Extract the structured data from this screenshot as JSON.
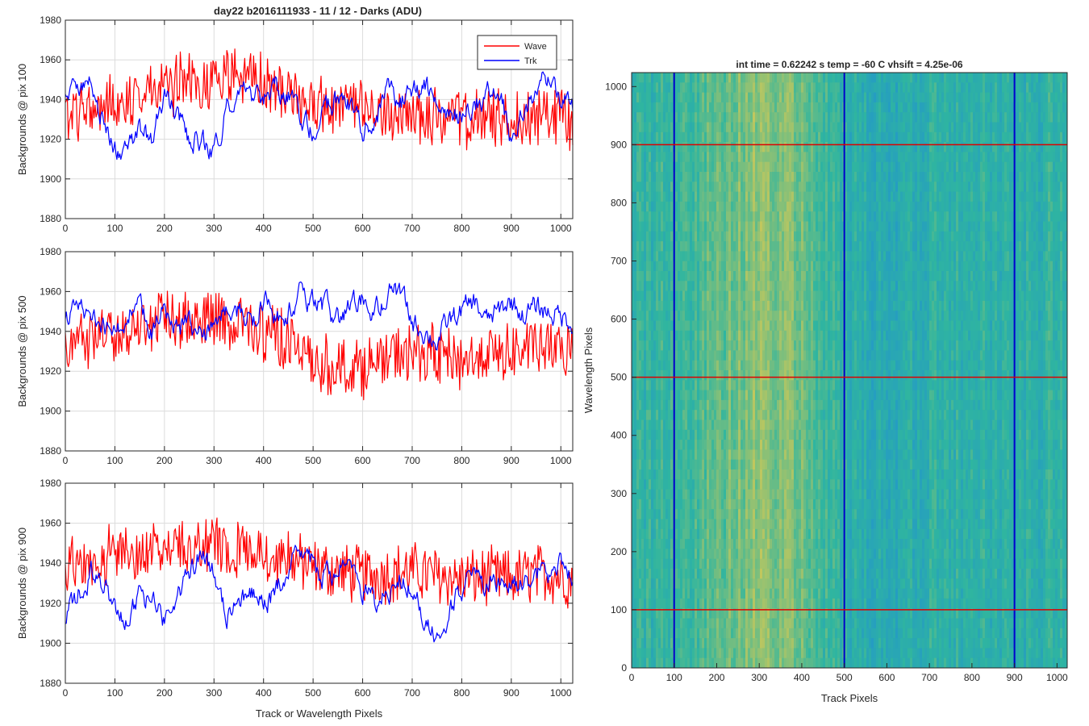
{
  "figure": {
    "title": "day22 b2016111933 - 11 / 12 - Darks (ADU)",
    "image_title": "int time = 0.62242 s    temp = -60 C    vhsift = 4.25e-06"
  },
  "colors": {
    "wave": "#ff0000",
    "trk": "#0000ff",
    "grid": "#dcdcdc",
    "axis": "#262626",
    "image_low": "#1f8ed6",
    "image_mid": "#2fb5a0",
    "image_high": "#c8c85a"
  },
  "chart_data": [
    {
      "type": "line",
      "ylabel": "Backgrounds @ pix 100",
      "xlabel": "",
      "xlim": [
        0,
        1024
      ],
      "ylim": [
        1880,
        1980
      ],
      "xticks": [
        0,
        100,
        200,
        300,
        400,
        500,
        600,
        700,
        800,
        900,
        1000
      ],
      "yticks": [
        1880,
        1900,
        1920,
        1940,
        1960,
        1980
      ],
      "grid": true,
      "legend": "top-right",
      "series": [
        {
          "name": "Wave",
          "color": "#ff0000",
          "x": [
            0,
            50,
            100,
            150,
            200,
            250,
            300,
            350,
            400,
            450,
            500,
            550,
            600,
            650,
            700,
            750,
            800,
            850,
            900,
            950,
            1000,
            1024
          ],
          "y": [
            1931,
            1936,
            1938,
            1944,
            1946,
            1948,
            1950,
            1952,
            1948,
            1942,
            1938,
            1936,
            1934,
            1932,
            1933,
            1931,
            1930,
            1930,
            1929,
            1932,
            1933,
            1930
          ]
        },
        {
          "name": "Trk",
          "color": "#0000ff",
          "x": [
            0,
            25,
            50,
            75,
            100,
            125,
            150,
            175,
            200,
            225,
            250,
            275,
            300,
            325,
            350,
            375,
            400,
            425,
            450,
            475,
            500,
            525,
            550,
            575,
            600,
            625,
            650,
            675,
            700,
            725,
            750,
            775,
            800,
            825,
            850,
            875,
            900,
            925,
            950,
            975,
            1000,
            1024
          ],
          "y": [
            1940,
            1950,
            1948,
            1930,
            1915,
            1912,
            1925,
            1918,
            1942,
            1932,
            1920,
            1918,
            1915,
            1935,
            1945,
            1942,
            1938,
            1945,
            1942,
            1930,
            1924,
            1935,
            1940,
            1938,
            1925,
            1930,
            1945,
            1938,
            1942,
            1948,
            1935,
            1930,
            1932,
            1938,
            1942,
            1945,
            1920,
            1935,
            1945,
            1952,
            1942,
            1935
          ]
        }
      ]
    },
    {
      "type": "line",
      "ylabel": "Backgrounds @ pix 500",
      "xlabel": "",
      "xlim": [
        0,
        1024
      ],
      "ylim": [
        1880,
        1980
      ],
      "xticks": [
        0,
        100,
        200,
        300,
        400,
        500,
        600,
        700,
        800,
        900,
        1000
      ],
      "yticks": [
        1880,
        1900,
        1920,
        1940,
        1960,
        1980
      ],
      "grid": true,
      "series": [
        {
          "name": "Wave",
          "color": "#ff0000",
          "x": [
            0,
            50,
            100,
            150,
            200,
            250,
            300,
            350,
            400,
            450,
            500,
            550,
            600,
            650,
            700,
            750,
            800,
            850,
            900,
            950,
            1000,
            1024
          ],
          "y": [
            1932,
            1937,
            1940,
            1942,
            1945,
            1946,
            1948,
            1945,
            1940,
            1935,
            1925,
            1922,
            1922,
            1926,
            1930,
            1928,
            1925,
            1928,
            1930,
            1932,
            1930,
            1928
          ]
        },
        {
          "name": "Trk",
          "color": "#0000ff",
          "x": [
            0,
            25,
            50,
            75,
            100,
            125,
            150,
            175,
            200,
            225,
            250,
            275,
            300,
            325,
            350,
            375,
            400,
            425,
            450,
            475,
            500,
            525,
            550,
            575,
            600,
            625,
            650,
            675,
            700,
            725,
            750,
            775,
            800,
            825,
            850,
            875,
            900,
            925,
            950,
            975,
            1000,
            1024
          ],
          "y": [
            1945,
            1952,
            1948,
            1945,
            1938,
            1950,
            1952,
            1938,
            1950,
            1940,
            1945,
            1935,
            1948,
            1952,
            1950,
            1945,
            1955,
            1948,
            1950,
            1958,
            1955,
            1952,
            1945,
            1952,
            1955,
            1950,
            1958,
            1960,
            1945,
            1940,
            1935,
            1945,
            1950,
            1955,
            1945,
            1950,
            1955,
            1948,
            1952,
            1950,
            1948,
            1945
          ]
        }
      ]
    },
    {
      "type": "line",
      "ylabel": "Backgrounds @ pix 900",
      "xlabel": "Track or Wavelength Pixels",
      "xlim": [
        0,
        1024
      ],
      "ylim": [
        1880,
        1980
      ],
      "xticks": [
        0,
        100,
        200,
        300,
        400,
        500,
        600,
        700,
        800,
        900,
        1000
      ],
      "yticks": [
        1880,
        1900,
        1920,
        1940,
        1960,
        1980
      ],
      "grid": true,
      "series": [
        {
          "name": "Wave",
          "color": "#ff0000",
          "x": [
            0,
            50,
            100,
            150,
            200,
            250,
            300,
            350,
            400,
            450,
            500,
            550,
            600,
            650,
            700,
            750,
            800,
            850,
            900,
            950,
            1000,
            1024
          ],
          "y": [
            1940,
            1942,
            1944,
            1946,
            1947,
            1948,
            1948,
            1947,
            1945,
            1942,
            1938,
            1936,
            1934,
            1935,
            1936,
            1934,
            1932,
            1933,
            1932,
            1935,
            1934,
            1930
          ]
        },
        {
          "name": "Trk",
          "color": "#0000ff",
          "x": [
            0,
            25,
            50,
            75,
            100,
            125,
            150,
            175,
            200,
            225,
            250,
            275,
            300,
            325,
            350,
            375,
            400,
            425,
            450,
            475,
            500,
            525,
            550,
            575,
            600,
            625,
            650,
            675,
            700,
            725,
            750,
            775,
            800,
            825,
            850,
            875,
            900,
            925,
            950,
            975,
            1000,
            1024
          ],
          "y": [
            1910,
            1925,
            1935,
            1932,
            1915,
            1908,
            1925,
            1920,
            1912,
            1922,
            1935,
            1948,
            1935,
            1915,
            1918,
            1925,
            1918,
            1925,
            1938,
            1945,
            1940,
            1932,
            1938,
            1935,
            1928,
            1920,
            1925,
            1932,
            1930,
            1912,
            1905,
            1915,
            1928,
            1935,
            1925,
            1932,
            1930,
            1928,
            1935,
            1932,
            1938,
            1935
          ]
        }
      ]
    },
    {
      "type": "heatmap",
      "title": "int time = 0.62242 s    temp = -60 C    vhsift = 4.25e-06",
      "xlabel": "Track Pixels",
      "ylabel": "Wavelength Pixels",
      "xlim": [
        0,
        1024
      ],
      "ylim": [
        0,
        1024
      ],
      "xticks": [
        0,
        100,
        200,
        300,
        400,
        500,
        600,
        700,
        800,
        900,
        1000
      ],
      "yticks": [
        0,
        100,
        200,
        300,
        400,
        500,
        600,
        700,
        800,
        900,
        1000
      ],
      "grid": false,
      "column_profile": {
        "x": [
          0,
          50,
          100,
          150,
          200,
          250,
          300,
          350,
          400,
          450,
          500,
          550,
          600,
          650,
          700,
          750,
          800,
          850,
          900,
          950,
          1000,
          1024
        ],
        "level": [
          0.45,
          0.48,
          0.55,
          0.58,
          0.66,
          0.74,
          0.8,
          0.78,
          0.68,
          0.58,
          0.42,
          0.36,
          0.35,
          0.4,
          0.42,
          0.44,
          0.48,
          0.44,
          0.4,
          0.42,
          0.48,
          0.45
        ]
      },
      "vertical_lines": {
        "x": [
          100,
          500,
          900
        ],
        "color": "#0000cc"
      },
      "horizontal_lines": {
        "y": [
          100,
          500,
          900
        ],
        "color": "#dd0000"
      }
    }
  ]
}
